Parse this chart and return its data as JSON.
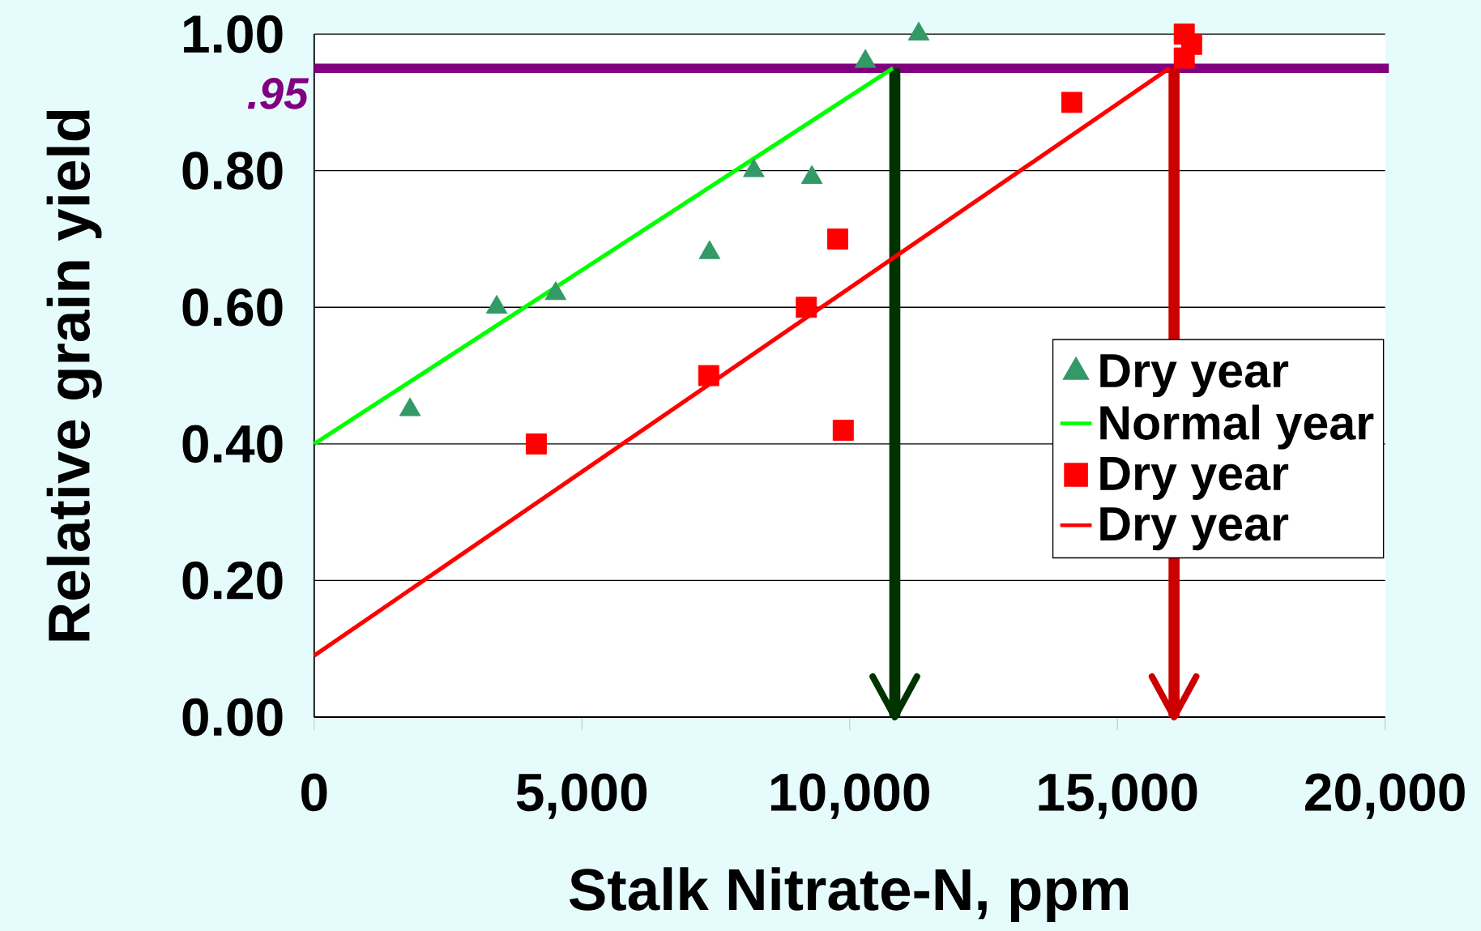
{
  "chart_data": {
    "type": "scatter",
    "xlabel": "Stalk Nitrate-N, ppm",
    "ylabel": "Relative grain yield",
    "xlim": [
      0,
      20000
    ],
    "ylim": [
      0,
      1
    ],
    "xticks": [
      0,
      {
        "value": 5000,
        "label": "5,000"
      },
      {
        "value": 10000,
        "label": "10,000"
      },
      {
        "value": 15000,
        "label": "15,000"
      },
      {
        "value": 20000,
        "label": "20,000"
      }
    ],
    "yticks": [
      {
        "value": 0,
        "label": "0.00"
      },
      {
        "value": 0.2,
        "label": "0.20"
      },
      {
        "value": 0.4,
        "label": "0.40"
      },
      {
        "value": 0.6,
        "label": "0.60"
      },
      {
        "value": 0.8,
        "label": "0.80"
      },
      {
        "value": 1,
        "label": "1.00"
      }
    ],
    "grid": "y",
    "legend": "right",
    "series": [
      {
        "name": "Dry year",
        "type": "scatter",
        "marker": "triangle",
        "color": "#339966",
        "x": [
          1790,
          3408,
          4509,
          7384,
          8210,
          9294,
          10293,
          11290
        ],
        "values": [
          0.45,
          0.6,
          0.62,
          0.68,
          0.8,
          0.79,
          0.96,
          1.0
        ]
      },
      {
        "name": "Normal year",
        "type": "line",
        "marker": "none",
        "line_style": "solid",
        "color": "#00ff00",
        "x": [
          0,
          10809
        ],
        "values": [
          0.4,
          0.95
        ]
      },
      {
        "name": "Dry year",
        "type": "scatter",
        "marker": "square",
        "color": "#ff0000",
        "x": [
          4148,
          7367,
          9191,
          9776,
          9880,
          14148,
          16248,
          16386,
          16248
        ],
        "values": [
          0.4,
          0.5,
          0.6,
          0.7,
          0.42,
          0.9,
          1.0,
          0.985,
          0.965
        ]
      },
      {
        "name": "Dry year",
        "type": "line",
        "marker": "none",
        "line_style": "solid",
        "color": "#ff0000",
        "x": [
          0,
          15972
        ],
        "values": [
          0.09,
          0.95
        ]
      }
    ],
    "ref_lines": [
      {
        "axis": "y",
        "value": 0.95,
        "label": ".95",
        "color": "#800080"
      },
      {
        "axis": "x",
        "value": 10843,
        "color": "#003300"
      },
      {
        "axis": "x",
        "value": 16058,
        "color": "#cc0000"
      }
    ]
  }
}
